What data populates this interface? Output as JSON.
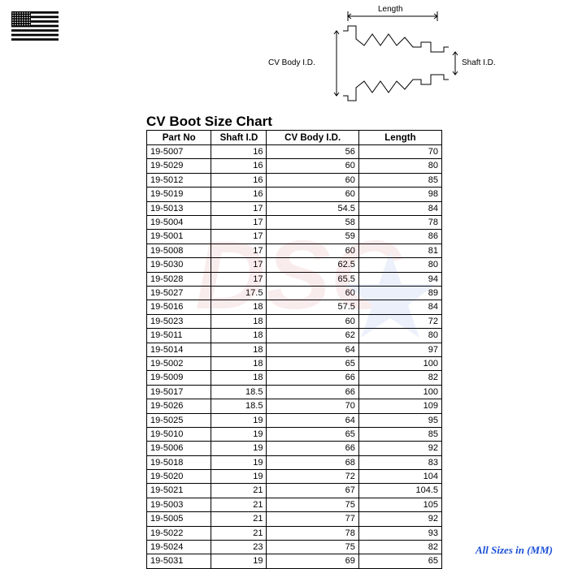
{
  "title": "CV Boot Size Chart",
  "footer_note": "All Sizes in (MM)",
  "footer_note_color": "#1a4fd6",
  "diagram": {
    "length_label": "Length",
    "body_label": "CV Body I.D.",
    "shaft_label": "Shaft I.D.",
    "stroke": "#000000"
  },
  "flag": {
    "blue": "#000000",
    "red": "#000000",
    "white": "#ffffff",
    "stripes": 13,
    "canton_cols": 8,
    "canton_rows": 6
  },
  "watermark": {
    "text": "DSC",
    "text_color": "#c02020",
    "star_color": "#1a4fd6",
    "opacity": 0.08
  },
  "table": {
    "columns": [
      "Part No",
      "Shaft I.D",
      "CV Body I.D.",
      "Length"
    ],
    "column_align": [
      "left",
      "right",
      "right",
      "right"
    ],
    "rows": [
      [
        "19-5007",
        "16",
        "56",
        "70"
      ],
      [
        "19-5029",
        "16",
        "60",
        "80"
      ],
      [
        "19-5012",
        "16",
        "60",
        "85"
      ],
      [
        "19-5019",
        "16",
        "60",
        "98"
      ],
      [
        "19-5013",
        "17",
        "54.5",
        "84"
      ],
      [
        "19-5004",
        "17",
        "58",
        "78"
      ],
      [
        "19-5001",
        "17",
        "59",
        "86"
      ],
      [
        "19-5008",
        "17",
        "60",
        "81"
      ],
      [
        "19-5030",
        "17",
        "62.5",
        "80"
      ],
      [
        "19-5028",
        "17",
        "65.5",
        "94"
      ],
      [
        "19-5027",
        "17.5",
        "60",
        "89"
      ],
      [
        "19-5016",
        "18",
        "57.5",
        "84"
      ],
      [
        "19-5023",
        "18",
        "60",
        "72"
      ],
      [
        "19-5011",
        "18",
        "62",
        "80"
      ],
      [
        "19-5014",
        "18",
        "64",
        "97"
      ],
      [
        "19-5002",
        "18",
        "65",
        "100"
      ],
      [
        "19-5009",
        "18",
        "66",
        "82"
      ],
      [
        "19-5017",
        "18.5",
        "66",
        "100"
      ],
      [
        "19-5026",
        "18.5",
        "70",
        "109"
      ],
      [
        "19-5025",
        "19",
        "64",
        "95"
      ],
      [
        "19-5010",
        "19",
        "65",
        "85"
      ],
      [
        "19-5006",
        "19",
        "66",
        "92"
      ],
      [
        "19-5018",
        "19",
        "68",
        "83"
      ],
      [
        "19-5020",
        "19",
        "72",
        "104"
      ],
      [
        "19-5021",
        "21",
        "67",
        "104.5"
      ],
      [
        "19-5003",
        "21",
        "75",
        "105"
      ],
      [
        "19-5005",
        "21",
        "77",
        "92"
      ],
      [
        "19-5022",
        "21",
        "78",
        "93"
      ],
      [
        "19-5024",
        "23",
        "75",
        "82"
      ],
      [
        "19-5031",
        "19",
        "69",
        "65"
      ]
    ]
  }
}
